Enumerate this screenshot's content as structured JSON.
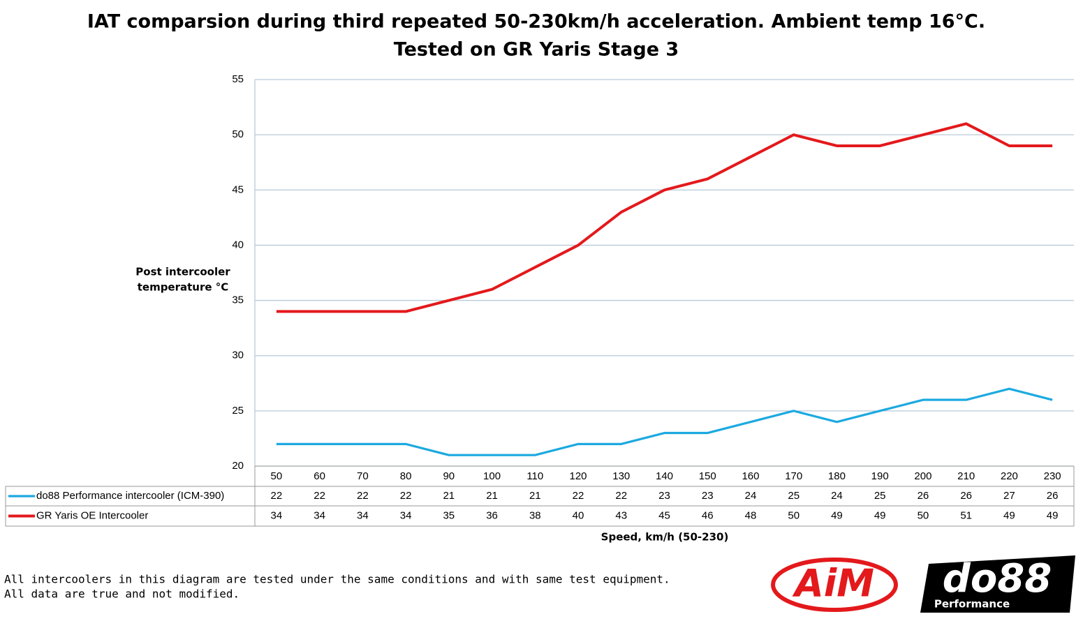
{
  "chart_data": {
    "type": "line",
    "title": "IAT comparsion during third repeated 50-230km/h acceleration. Ambient temp 16°C.",
    "subtitle": "Tested on GR Yaris Stage 3",
    "y_label": [
      "Post intercooler",
      "temperature °C"
    ],
    "x_label": "Speed, km/h (50-230)",
    "categories": [
      50,
      60,
      70,
      80,
      90,
      100,
      110,
      120,
      130,
      140,
      150,
      160,
      170,
      180,
      190,
      200,
      210,
      220,
      230
    ],
    "series": [
      {
        "name": "do88 Performance intercooler (ICM-390)",
        "color": "#1ca9e0",
        "values": [
          22,
          22,
          22,
          22,
          21,
          21,
          21,
          22,
          22,
          23,
          23,
          24,
          25,
          24,
          25,
          26,
          26,
          27,
          26
        ]
      },
      {
        "name": "GR Yaris OE Intercooler",
        "color": "#e3191c",
        "values": [
          34,
          34,
          34,
          34,
          35,
          36,
          38,
          40,
          43,
          45,
          46,
          48,
          50,
          49,
          49,
          50,
          51,
          49,
          49
        ]
      }
    ],
    "ylim": [
      20,
      55
    ],
    "yticks": [
      20,
      25,
      30,
      35,
      40,
      45,
      50,
      55
    ],
    "grid": true,
    "notes": [
      "All intercoolers in this diagram are tested under the same conditions and with same test equipment.",
      "All data are true and not modified."
    ],
    "logos": [
      "AiM",
      "do88",
      "Performance"
    ]
  }
}
